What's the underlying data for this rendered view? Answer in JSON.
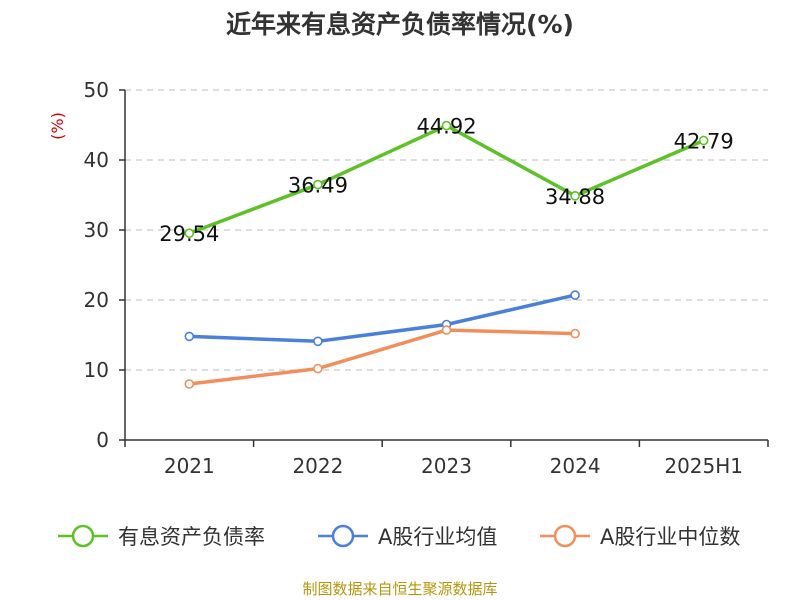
{
  "chart_data": {
    "type": "line",
    "title": "近年来有息资产负债率情况(%)",
    "ylabel": "(%)",
    "xlabel": "",
    "categories": [
      "2021",
      "2022",
      "2023",
      "2024",
      "2025H1"
    ],
    "ylim": [
      0,
      50
    ],
    "yticks": [
      0,
      10,
      20,
      30,
      40,
      50
    ],
    "grid": true,
    "legend_position": "bottom",
    "series": [
      {
        "name": "有息资产负债率",
        "color": "#5dc226",
        "values": [
          29.54,
          36.49,
          44.92,
          34.88,
          42.79
        ],
        "data_labels": [
          "29.54",
          "36.49",
          "44.92",
          "34.88",
          "42.79"
        ]
      },
      {
        "name": "A股行业均值",
        "color": "#4a7fdc",
        "values": [
          14.8,
          14.1,
          16.5,
          20.7,
          null
        ]
      },
      {
        "name": "A股行业中位数",
        "color": "#f28e5b",
        "values": [
          8.0,
          10.2,
          15.7,
          15.2,
          null
        ]
      }
    ],
    "source": "制图数据来自恒生聚源数据库"
  }
}
